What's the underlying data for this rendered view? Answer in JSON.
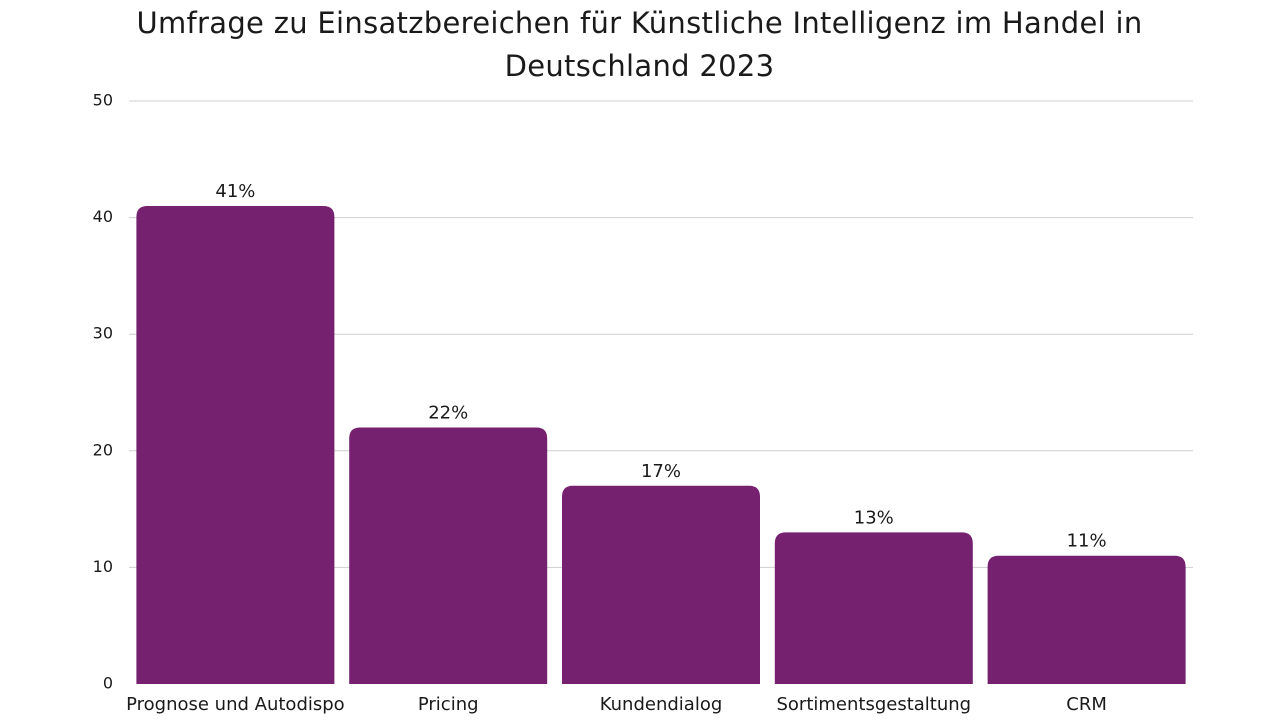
{
  "chart_data": {
    "type": "bar",
    "title_lines": [
      "Umfrage zu Einsatzbereichen für Künstliche Intelligenz im Handel in",
      "Deutschland 2023"
    ],
    "categories": [
      "Prognose und Autodispo",
      "Pricing",
      "Kundendialog",
      "Sortimentsgestaltung",
      "CRM"
    ],
    "values": [
      41,
      22,
      17,
      13,
      11
    ],
    "data_labels": [
      "41%",
      "22%",
      "17%",
      "13%",
      "11%"
    ],
    "yticks": [
      0,
      10,
      20,
      30,
      40,
      50
    ],
    "ylim": [
      0,
      50
    ],
    "xlabel": "",
    "ylabel": "",
    "grid": true,
    "bar_color": "#76216f",
    "grid_color": "#cfcfcf"
  }
}
